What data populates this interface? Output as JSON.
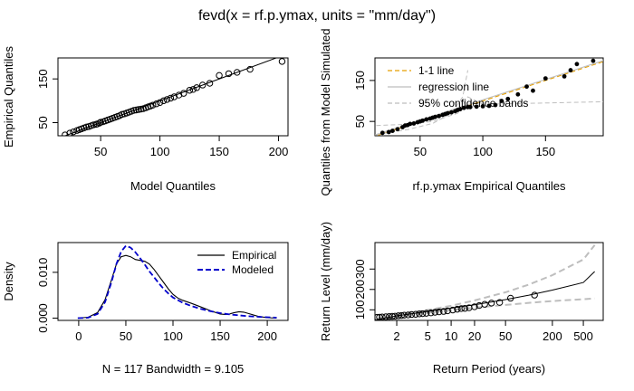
{
  "main_title": "fevd(x = rf.p.ymax, units = \"mm/day\")",
  "chart_data": [
    {
      "id": "qq1",
      "type": "scatter",
      "xlabel": "Model Quantiles",
      "ylabel": "Empirical Quantiles",
      "xlim": [
        14,
        208
      ],
      "ylim": [
        20,
        198
      ],
      "xticks": [
        50,
        100,
        150,
        200
      ],
      "yticks": [
        50,
        150
      ],
      "line_1to1": true,
      "points": [
        [
          20,
          22
        ],
        [
          24,
          26
        ],
        [
          27,
          29
        ],
        [
          30,
          32
        ],
        [
          32,
          34
        ],
        [
          34,
          36
        ],
        [
          36,
          38
        ],
        [
          38,
          40
        ],
        [
          40,
          41
        ],
        [
          42,
          43
        ],
        [
          44,
          45
        ],
        [
          46,
          46
        ],
        [
          47,
          47
        ],
        [
          49,
          49
        ],
        [
          50,
          51
        ],
        [
          52,
          52
        ],
        [
          54,
          54
        ],
        [
          56,
          56
        ],
        [
          58,
          58
        ],
        [
          60,
          60
        ],
        [
          62,
          62
        ],
        [
          64,
          64
        ],
        [
          66,
          66
        ],
        [
          68,
          69
        ],
        [
          70,
          70
        ],
        [
          72,
          72
        ],
        [
          74,
          74
        ],
        [
          76,
          76
        ],
        [
          78,
          78
        ],
        [
          80,
          79
        ],
        [
          82,
          80
        ],
        [
          84,
          81
        ],
        [
          86,
          82
        ],
        [
          88,
          84
        ],
        [
          90,
          86
        ],
        [
          92,
          88
        ],
        [
          94,
          90
        ],
        [
          97,
          93
        ],
        [
          100,
          96
        ],
        [
          103,
          100
        ],
        [
          106,
          103
        ],
        [
          109,
          106
        ],
        [
          112,
          109
        ],
        [
          116,
          113
        ],
        [
          120,
          117
        ],
        [
          125,
          124
        ],
        [
          128,
          126
        ],
        [
          131,
          130
        ],
        [
          136,
          136
        ],
        [
          142,
          140
        ],
        [
          150,
          158
        ],
        [
          158,
          162
        ],
        [
          165,
          165
        ],
        [
          176,
          172
        ],
        [
          203,
          190
        ]
      ]
    },
    {
      "id": "qq2",
      "type": "scatter",
      "xlabel": "rf.p.ymax Empirical Quantiles",
      "ylabel": "Quantiles from Model Simulated",
      "xlim": [
        14,
        196
      ],
      "ylim": [
        15,
        205
      ],
      "xticks": [
        50,
        100,
        150
      ],
      "yticks": [
        50,
        150
      ],
      "legend": [
        "1-1 line",
        "regression line",
        "95% confidence bands"
      ],
      "legend_colors": [
        "#e69f00",
        "#bebebe",
        "#bebebe"
      ],
      "points": [
        [
          20,
          22
        ],
        [
          25,
          24
        ],
        [
          28,
          27
        ],
        [
          32,
          31
        ],
        [
          36,
          36
        ],
        [
          38,
          40
        ],
        [
          40,
          41
        ],
        [
          42,
          44
        ],
        [
          45,
          45
        ],
        [
          48,
          48
        ],
        [
          50,
          50
        ],
        [
          52,
          52
        ],
        [
          55,
          55
        ],
        [
          58,
          57
        ],
        [
          60,
          59
        ],
        [
          62,
          61
        ],
        [
          65,
          63
        ],
        [
          68,
          66
        ],
        [
          70,
          68
        ],
        [
          72,
          70
        ],
        [
          75,
          72
        ],
        [
          78,
          75
        ],
        [
          80,
          78
        ],
        [
          82,
          80
        ],
        [
          85,
          83
        ],
        [
          88,
          85
        ],
        [
          90,
          85
        ],
        [
          95,
          86
        ],
        [
          100,
          87
        ],
        [
          105,
          88
        ],
        [
          110,
          90
        ],
        [
          115,
          100
        ],
        [
          120,
          105
        ],
        [
          128,
          116
        ],
        [
          135,
          135
        ],
        [
          140,
          125
        ],
        [
          150,
          155
        ],
        [
          165,
          160
        ],
        [
          170,
          175
        ],
        [
          175,
          190
        ],
        [
          188,
          198
        ]
      ]
    },
    {
      "id": "density",
      "type": "line",
      "xlabel": "N = 117   Bandwidth = 9.105",
      "ylabel": "Density",
      "xlim": [
        -22,
        222
      ],
      "ylim": [
        -0.0005,
        0.0165
      ],
      "xticks": [
        0,
        50,
        100,
        150,
        200
      ],
      "yticks": [
        0.0,
        0.01
      ],
      "ytick_labels": [
        "0.000",
        "0.010"
      ],
      "legend": [
        "Empirical",
        "Modeled"
      ],
      "series": [
        {
          "name": "Empirical",
          "color": "#000000",
          "x": [
            -1,
            10,
            20,
            28,
            35,
            40,
            45,
            50,
            55,
            60,
            65,
            70,
            75,
            80,
            85,
            90,
            95,
            100,
            105,
            110,
            120,
            130,
            140,
            150,
            155,
            160,
            165,
            170,
            175,
            180,
            190,
            200,
            210
          ],
          "y": [
            0.0,
            0.0002,
            0.0012,
            0.004,
            0.0085,
            0.0118,
            0.0134,
            0.0137,
            0.0134,
            0.0128,
            0.0126,
            0.0124,
            0.0118,
            0.0106,
            0.0092,
            0.0078,
            0.0064,
            0.0052,
            0.0044,
            0.0039,
            0.0032,
            0.0024,
            0.0016,
            0.0009,
            0.0008,
            0.0009,
            0.0012,
            0.0014,
            0.0013,
            0.001,
            0.0004,
            0.0001,
            0.0
          ]
        },
        {
          "name": "Modeled",
          "color": "#0000cc",
          "x": [
            -1,
            10,
            20,
            28,
            35,
            40,
            45,
            50,
            55,
            60,
            65,
            70,
            75,
            80,
            85,
            90,
            95,
            100,
            110,
            120,
            130,
            140,
            150,
            160,
            170,
            180,
            190,
            200,
            210
          ],
          "y": [
            0.0,
            0.0001,
            0.0009,
            0.0035,
            0.008,
            0.0118,
            0.0145,
            0.0158,
            0.0154,
            0.0144,
            0.0131,
            0.0117,
            0.0102,
            0.0089,
            0.0076,
            0.0064,
            0.0054,
            0.0045,
            0.0034,
            0.0026,
            0.002,
            0.0015,
            0.0011,
            0.0008,
            0.0006,
            0.0004,
            0.0003,
            0.0002,
            0.0001
          ]
        }
      ]
    },
    {
      "id": "return",
      "type": "line",
      "xlabel": "Return Period (years)",
      "ylabel": "Return Level (mm/day)",
      "xscale": "log",
      "xlim": [
        1.05,
        900
      ],
      "ylim": [
        48,
        430
      ],
      "xticks": [
        2,
        5,
        10,
        20,
        50,
        200,
        500
      ],
      "yticks": [
        100,
        200,
        300
      ],
      "fit": {
        "x": [
          1.1,
          2,
          5,
          10,
          20,
          50,
          100,
          200,
          500,
          700
        ],
        "y": [
          52,
          70,
          92,
          108,
          125,
          150,
          172,
          197,
          234,
          288
        ]
      },
      "upper_band": {
        "x": [
          1.1,
          2,
          5,
          10,
          20,
          50,
          100,
          200,
          500,
          700
        ],
        "y": [
          54,
          74,
          99,
          120,
          146,
          186,
          224,
          270,
          347,
          418
        ]
      },
      "lower_band": {
        "x": [
          1.1,
          2,
          5,
          10,
          20,
          50,
          100,
          200,
          500,
          700
        ],
        "y": [
          50,
          66,
          86,
          98,
          110,
          124,
          134,
          143,
          152,
          156
        ]
      },
      "points": [
        [
          1.12,
          63
        ],
        [
          1.2,
          64
        ],
        [
          1.3,
          65
        ],
        [
          1.45,
          66
        ],
        [
          1.6,
          67
        ],
        [
          1.75,
          68
        ],
        [
          1.9,
          69
        ],
        [
          2.1,
          71
        ],
        [
          2.3,
          72
        ],
        [
          2.5,
          74
        ],
        [
          2.8,
          75
        ],
        [
          3.1,
          77
        ],
        [
          3.5,
          78
        ],
        [
          3.9,
          80
        ],
        [
          4.3,
          81
        ],
        [
          4.8,
          83
        ],
        [
          5.5,
          85
        ],
        [
          6.2,
          88
        ],
        [
          7,
          90
        ],
        [
          8,
          92
        ],
        [
          9,
          95
        ],
        [
          10.5,
          99
        ],
        [
          12,
          103
        ],
        [
          13.5,
          106
        ],
        [
          15,
          107
        ],
        [
          17,
          110
        ],
        [
          20,
          115
        ],
        [
          23,
          121
        ],
        [
          27,
          127
        ],
        [
          33,
          133
        ],
        [
          42,
          136
        ],
        [
          58,
          157
        ],
        [
          118,
          172
        ]
      ]
    }
  ]
}
